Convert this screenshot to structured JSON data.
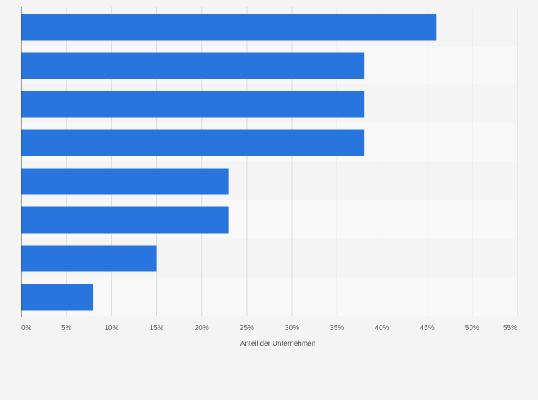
{
  "chart_data": {
    "type": "bar",
    "orientation": "horizontal",
    "categories": [
      "",
      "",
      "",
      "",
      "",
      "",
      "",
      ""
    ],
    "values": [
      46,
      38,
      38,
      38,
      23,
      23,
      15,
      8
    ],
    "xlabel": "Anteil der Unternehmen",
    "ylabel": "",
    "xlim": [
      0,
      55
    ],
    "xticks": [
      0,
      5,
      10,
      15,
      20,
      25,
      30,
      35,
      40,
      45,
      50,
      55
    ],
    "tick_suffix": "%",
    "grid": true,
    "legend": "none",
    "colors": {
      "bar": "#2876dd",
      "background": "#f4f4f4",
      "band_alt": "#f8f8f8",
      "grid": "#dcdcdc",
      "axis": "#444444"
    }
  }
}
